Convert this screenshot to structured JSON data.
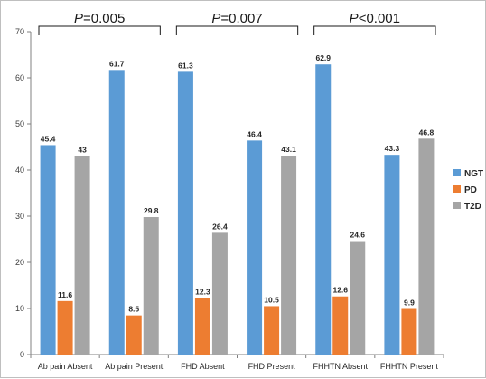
{
  "chart_data": {
    "type": "bar",
    "categories": [
      "Ab pain Absent",
      "Ab pain Present",
      "FHD Absent",
      "FHD Present",
      "FHHTN Absent",
      "FHHTN Present"
    ],
    "series": [
      {
        "name": "NGT",
        "values": [
          45.4,
          61.7,
          61.3,
          46.4,
          62.9,
          43.3
        ],
        "labels": [
          "45.4",
          "61.7",
          "61.3",
          "46.4",
          "62.9",
          "43.3"
        ],
        "color": "#5b9bd5"
      },
      {
        "name": "PD",
        "values": [
          11.6,
          8.5,
          12.3,
          10.5,
          12.6,
          9.9
        ],
        "labels": [
          "11.6",
          "8.5",
          "12.3",
          "10.5",
          "12.6",
          "9.9"
        ],
        "color": "#ed7d31"
      },
      {
        "name": "T2D",
        "values": [
          43,
          29.8,
          26.4,
          43.1,
          24.6,
          46.8
        ],
        "labels": [
          "43",
          "29.8",
          "26.4",
          "43.1",
          "24.6",
          "46.8"
        ],
        "color": "#a5a5a5"
      }
    ],
    "ylim": [
      0,
      70
    ],
    "yticks": [
      0,
      10,
      20,
      30,
      40,
      50,
      60,
      70
    ],
    "grid": false,
    "legend_position": "right",
    "annotations": [
      {
        "label": "P=0.005",
        "categories": [
          0,
          1
        ]
      },
      {
        "label": "P=0.007",
        "categories": [
          2,
          3
        ]
      },
      {
        "label": "P<0.001",
        "categories": [
          4,
          5
        ]
      }
    ]
  }
}
